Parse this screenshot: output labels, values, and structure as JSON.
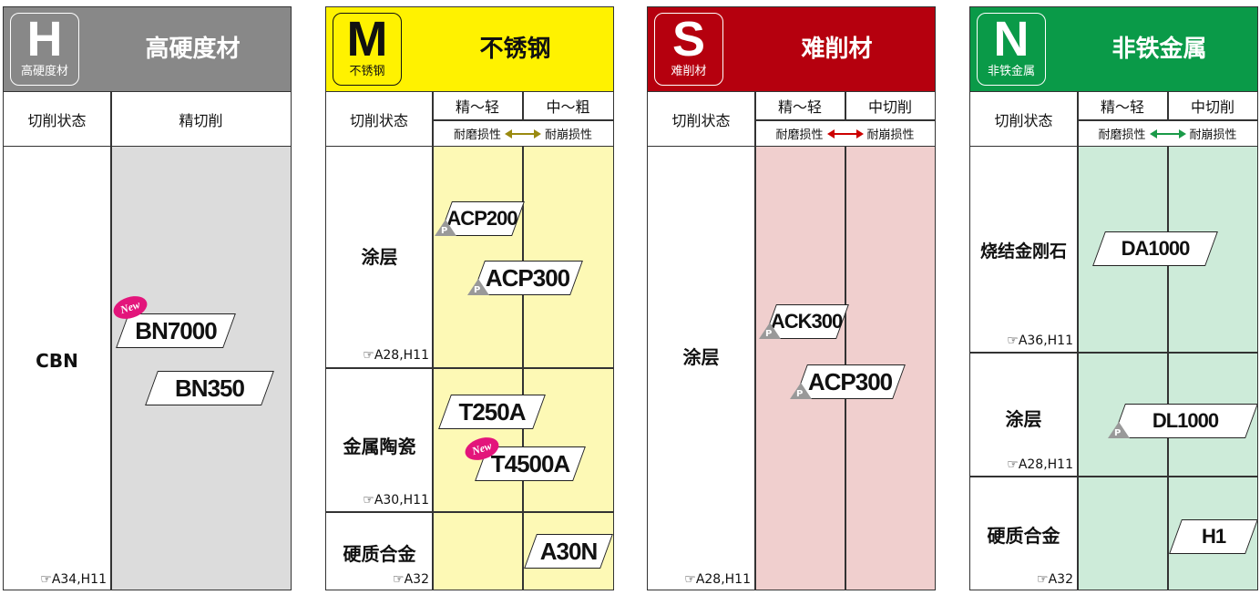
{
  "common": {
    "state_label": "切削状态",
    "ref_icon": "pointing-hand-icon"
  },
  "panels": {
    "H": {
      "letter": "H",
      "logo_sub": "高硬度材",
      "title": "高硬度材",
      "color": "#888888",
      "body_color": "#dcdcdc",
      "col": "精切削",
      "rows": [
        {
          "label": "CBN",
          "ref": "A34,H11",
          "products": [
            {
              "name": "BN7000",
              "new": "New"
            },
            {
              "name": "BN350"
            }
          ]
        }
      ]
    },
    "M": {
      "letter": "M",
      "logo_sub": "不锈钢",
      "title": "不锈钢",
      "color": "#fff200",
      "body_color": "#fdf9b5",
      "arrow_color": "#9a8a10",
      "cols": [
        "精～轻",
        "中～粗"
      ],
      "wear": "耐磨损性",
      "chip": "耐崩损性",
      "rows": [
        {
          "label": "涂层",
          "ref": "A28,H11",
          "products": [
            {
              "name": "ACP200",
              "p": "P"
            },
            {
              "name": "ACP300",
              "p": "P"
            }
          ]
        },
        {
          "label": "金属陶瓷",
          "ref": "A30,H11",
          "products": [
            {
              "name": "T250A"
            },
            {
              "name": "T4500A",
              "new": "New"
            }
          ]
        },
        {
          "label": "硬质合金",
          "ref": "A32",
          "products": [
            {
              "name": "A30N"
            }
          ]
        }
      ]
    },
    "S": {
      "letter": "S",
      "logo_sub": "难削材",
      "title": "难削材",
      "color": "#b5000e",
      "body_color": "#f0cfce",
      "arrow_color": "#cc0000",
      "cols": [
        "精～轻",
        "中切削"
      ],
      "wear": "耐磨损性",
      "chip": "耐崩损性",
      "rows": [
        {
          "label": "涂层",
          "ref": "A28,H11",
          "products": [
            {
              "name": "ACK300",
              "p": "P"
            },
            {
              "name": "ACP300",
              "p": "P"
            }
          ]
        }
      ]
    },
    "N": {
      "letter": "N",
      "logo_sub": "非铁金属",
      "title": "非铁金属",
      "color": "#0a9a48",
      "body_color": "#cdebd9",
      "arrow_color": "#1a9a48",
      "cols": [
        "精～轻",
        "中切削"
      ],
      "wear": "耐磨损性",
      "chip": "耐崩损性",
      "rows": [
        {
          "label": "烧结金刚石",
          "ref": "A36,H11",
          "products": [
            {
              "name": "DA1000"
            }
          ]
        },
        {
          "label": "涂层",
          "ref": "A28,H11",
          "products": [
            {
              "name": "DL1000",
              "p": "P"
            }
          ]
        },
        {
          "label": "硬质合金",
          "ref": "A32",
          "products": [
            {
              "name": "H1"
            }
          ]
        }
      ]
    }
  }
}
